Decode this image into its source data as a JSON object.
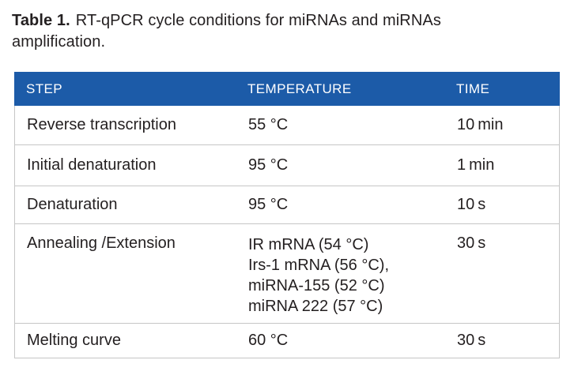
{
  "caption": {
    "label": "Table 1.",
    "text": "RT-qPCR cycle conditions for miRNAs and miRNAs amplification."
  },
  "table": {
    "columns": [
      {
        "label": "STEP"
      },
      {
        "label": "TEMPERATURE"
      },
      {
        "label": "TIME"
      }
    ],
    "rows": [
      {
        "step": "Reverse transcription",
        "temperature_lines": [
          "55 °C"
        ],
        "time": "10 min"
      },
      {
        "step": "Initial denaturation",
        "temperature_lines": [
          "95 °C"
        ],
        "time": "1 min"
      },
      {
        "step": "Denaturation",
        "temperature_lines": [
          "95 °C"
        ],
        "time": "10 s"
      },
      {
        "step": "Annealing /Extension",
        "temperature_lines": [
          "IR mRNA (54 °C)",
          "Irs-1 mRNA (56 °C),",
          "miRNA-155 (52 °C)",
          "miRNA 222 (57 °C)"
        ],
        "time": "30 s"
      },
      {
        "step": "Melting curve",
        "temperature_lines": [
          "60 °C"
        ],
        "time": "30 s"
      }
    ]
  },
  "colors": {
    "header_background": "#1c5ba8",
    "header_text": "#ffffff",
    "body_text": "#231f20",
    "row_border": "#c6c6c6",
    "page_background": "#ffffff"
  }
}
